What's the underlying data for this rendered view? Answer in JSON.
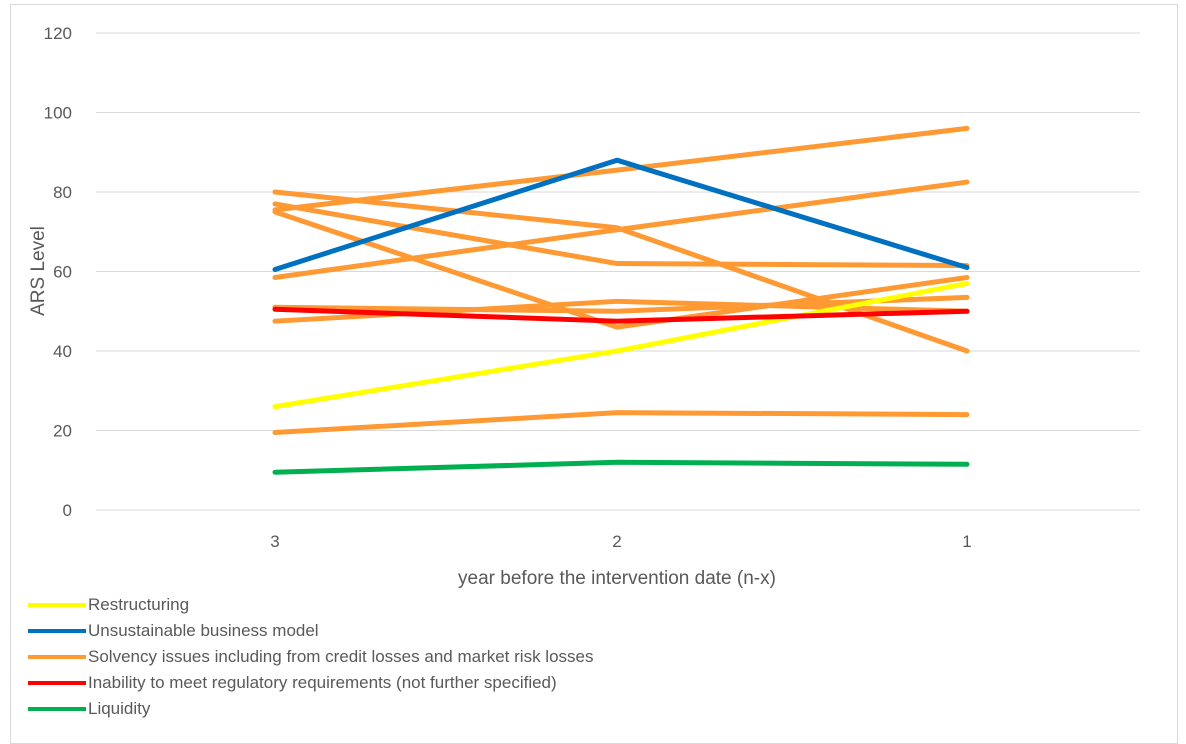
{
  "chart_data": {
    "type": "line",
    "title": "",
    "xlabel": "year before the intervention date (n-x)",
    "ylabel": "ARS Level",
    "categories": [
      "3",
      "2",
      "1"
    ],
    "ylim": [
      0,
      120
    ],
    "yticks": [
      "0",
      "20",
      "40",
      "60",
      "80",
      "100",
      "120"
    ],
    "grid": true,
    "legend_position": "bottom-left",
    "legend": [
      {
        "label": "Restructuring",
        "color": "#ffff00"
      },
      {
        "label": "Unsustainable business model",
        "color": "#0070c0"
      },
      {
        "label": "Solvency issues including from credit losses and market risk losses",
        "color": "#ff9933"
      },
      {
        "label": "Inability to meet regulatory requirements (not further specified)",
        "color": "#ff0000"
      },
      {
        "label": "Liquidity",
        "color": "#00b050"
      }
    ],
    "series": [
      {
        "category": "Solvency issues including from credit losses and market risk losses",
        "color": "#ff9933",
        "values": [
          75.5,
          85.5,
          96
        ]
      },
      {
        "category": "Solvency issues including from credit losses and market risk losses",
        "color": "#ff9933",
        "values": [
          58.5,
          70.5,
          82.5
        ]
      },
      {
        "category": "Solvency issues including from credit losses and market risk losses",
        "color": "#ff9933",
        "values": [
          77,
          62,
          61.5
        ]
      },
      {
        "category": "Solvency issues including from credit losses and market risk losses",
        "color": "#ff9933",
        "values": [
          80,
          71,
          40
        ]
      },
      {
        "category": "Solvency issues including from credit losses and market risk losses",
        "color": "#ff9933",
        "values": [
          75,
          46,
          58.5
        ]
      },
      {
        "category": "Solvency issues including from credit losses and market risk losses",
        "color": "#ff9933",
        "values": [
          51,
          50,
          53.5
        ]
      },
      {
        "category": "Solvency issues including from credit losses and market risk losses",
        "color": "#ff9933",
        "values": [
          47.5,
          52.5,
          50
        ]
      },
      {
        "category": "Solvency issues including from credit losses and market risk losses",
        "color": "#ff9933",
        "values": [
          19.5,
          24.5,
          24
        ]
      },
      {
        "category": "Restructuring",
        "color": "#ffff00",
        "values": [
          26,
          40,
          57
        ]
      },
      {
        "category": "Unsustainable business model",
        "color": "#0070c0",
        "values": [
          60.5,
          88,
          61
        ]
      },
      {
        "category": "Inability to meet regulatory requirements (not further specified)",
        "color": "#ff0000",
        "values": [
          50.5,
          47.5,
          50
        ]
      },
      {
        "category": "Liquidity",
        "color": "#00b050",
        "values": [
          9.5,
          12,
          11.5
        ]
      }
    ]
  }
}
